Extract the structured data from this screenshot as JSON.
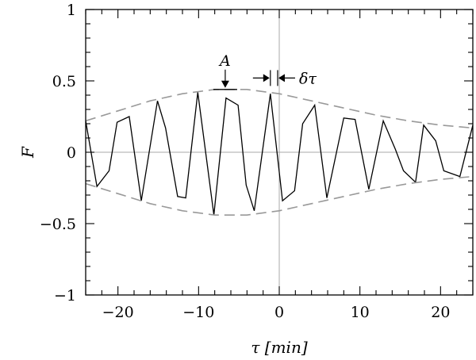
{
  "chart_data": {
    "type": "line",
    "xlabel": "τ [min]",
    "ylabel": "F",
    "xlim": [
      -24,
      24
    ],
    "ylim": [
      -1,
      1
    ],
    "xticks": [
      -20,
      -10,
      0,
      10,
      20
    ],
    "yticks": [
      -1,
      -0.5,
      0,
      0.5,
      1
    ],
    "xtick_labels": [
      "−20",
      "−10",
      "0",
      "10",
      "20"
    ],
    "ytick_labels": [
      "−1",
      "−0.5",
      "0",
      "0.5",
      "1"
    ],
    "grid": false,
    "reference_lines": {
      "horizontal_y": 0,
      "vertical_x": 0
    },
    "series": [
      {
        "style": "solid",
        "color": "#000000",
        "x": [
          -24,
          -22.6,
          -21.1,
          -20.1,
          -18.6,
          -17.1,
          -15.1,
          -14.1,
          -12.6,
          -11.6,
          -10.1,
          -8.1,
          -6.6,
          -5.1,
          -4.1,
          -3.1,
          -1.1,
          0.4,
          1.9,
          2.9,
          4.4,
          5.9,
          8.0,
          9.4,
          11.1,
          12.9,
          14.4,
          15.4,
          16.9,
          17.9,
          19.4,
          20.4,
          22.4,
          24
        ],
        "y": [
          0.22,
          -0.24,
          -0.13,
          0.21,
          0.25,
          -0.34,
          0.36,
          0.17,
          -0.31,
          -0.32,
          0.42,
          -0.44,
          0.38,
          0.33,
          -0.23,
          -0.41,
          0.41,
          -0.34,
          -0.27,
          0.2,
          0.33,
          -0.32,
          0.24,
          0.23,
          -0.26,
          0.22,
          0.02,
          -0.13,
          -0.21,
          0.19,
          0.08,
          -0.13,
          -0.17,
          0.19
        ]
      },
      {
        "style": "dashed",
        "color": "#999999",
        "x": [
          -24,
          -20,
          -16,
          -12,
          -8,
          -4,
          0,
          4,
          8,
          12,
          16,
          20,
          24
        ],
        "y": [
          0.22,
          0.29,
          0.36,
          0.41,
          0.44,
          0.44,
          0.41,
          0.36,
          0.31,
          0.26,
          0.22,
          0.19,
          0.17
        ]
      },
      {
        "style": "dashed",
        "color": "#999999",
        "x": [
          -24,
          -20,
          -16,
          -12,
          -8,
          -4,
          0,
          4,
          8,
          12,
          16,
          20,
          24
        ],
        "y": [
          -0.22,
          -0.29,
          -0.36,
          -0.41,
          -0.44,
          -0.44,
          -0.41,
          -0.36,
          -0.31,
          -0.26,
          -0.22,
          -0.19,
          -0.17
        ]
      }
    ],
    "annotations": [
      {
        "text": "A",
        "x": -6.5,
        "y": 0.44,
        "kind": "arrow-down-to-crest"
      },
      {
        "text": "δτ",
        "x_from": -1.1,
        "x_to": -0.2,
        "y": 0.52,
        "kind": "double-arrow-interval"
      }
    ]
  }
}
